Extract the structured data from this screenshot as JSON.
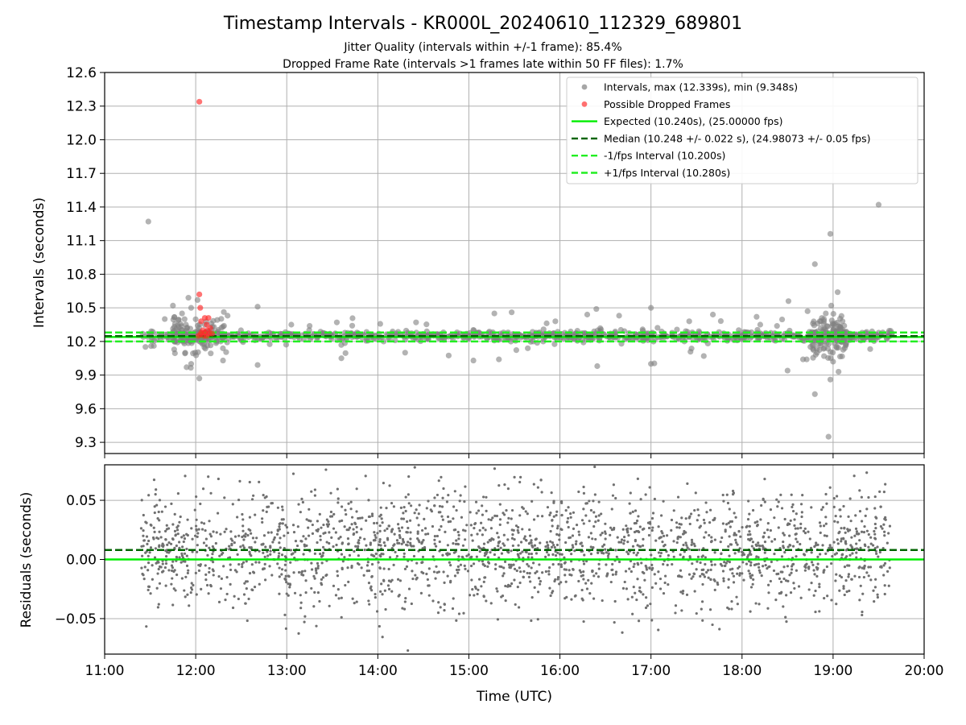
{
  "chart_data": [
    {
      "type": "scatter",
      "title": "Timestamp Intervals - KR000L_20240610_112329_689801",
      "subtitle_lines": [
        "Jitter Quality (intervals within +/-1 frame): 85.4%",
        "Dropped Frame Rate (intervals >1 frames late within 50 FF files): 1.7%"
      ],
      "xlabel": "",
      "ylabel": "Intervals (seconds)",
      "xlim": [
        11.0,
        20.0
      ],
      "ylim": [
        9.2,
        12.6
      ],
      "yticks": [
        9.3,
        9.6,
        9.9,
        10.2,
        10.5,
        10.8,
        11.1,
        11.4,
        11.7,
        12.0,
        12.3,
        12.6
      ],
      "ytick_labels": [
        "9.3",
        "9.6",
        "9.9",
        "10.2",
        "10.5",
        "10.8",
        "11.1",
        "11.4",
        "11.7",
        "12.0",
        "12.3",
        "12.6"
      ],
      "grid": true,
      "legend_position": "top-right",
      "legend": [
        {
          "label": "Intervals, max (12.339s), min (9.348s)",
          "marker": "dot",
          "color": "#808080"
        },
        {
          "label": "Possible Dropped Frames",
          "marker": "dot",
          "color": "#ff3333"
        },
        {
          "label": "Expected (10.240s), (25.00000 fps)",
          "marker": "solid-line",
          "color": "#00ee00"
        },
        {
          "label": "Median (10.248 +/- 0.022 s), (24.98073 +/- 0.05 fps)",
          "marker": "dashed-line",
          "color": "#006400"
        },
        {
          "label": "-1/fps Interval (10.200s)",
          "marker": "dashed-line",
          "color": "#22ee22"
        },
        {
          "label": "+1/fps Interval (10.280s)",
          "marker": "dashed-line",
          "color": "#22ee22"
        }
      ],
      "lines": [
        {
          "name": "expected",
          "y": 10.24,
          "style": "solid",
          "color": "#00ee00"
        },
        {
          "name": "median",
          "y": 10.248,
          "style": "dashed",
          "color": "#006400"
        },
        {
          "name": "minus-one-fps",
          "y": 10.2,
          "style": "dashed",
          "color": "#22ee22"
        },
        {
          "name": "plus-one-fps",
          "y": 10.28,
          "style": "dashed",
          "color": "#22ee22"
        }
      ],
      "outliers": [
        {
          "x": 11.48,
          "y": 11.27
        },
        {
          "x": 19.5,
          "y": 11.42
        },
        {
          "x": 18.97,
          "y": 11.16
        },
        {
          "x": 18.8,
          "y": 10.89
        },
        {
          "x": 18.98,
          "y": 10.52
        },
        {
          "x": 19.05,
          "y": 10.64
        },
        {
          "x": 18.72,
          "y": 10.47
        },
        {
          "x": 18.51,
          "y": 10.56
        },
        {
          "x": 18.92,
          "y": 10.45
        },
        {
          "x": 18.5,
          "y": 9.94
        },
        {
          "x": 18.67,
          "y": 10.04
        },
        {
          "x": 18.71,
          "y": 10.04
        },
        {
          "x": 18.8,
          "y": 9.73
        },
        {
          "x": 18.97,
          "y": 9.86
        },
        {
          "x": 18.95,
          "y": 9.35
        },
        {
          "x": 19.06,
          "y": 9.93
        },
        {
          "x": 19.0,
          "y": 10.02
        },
        {
          "x": 18.9,
          "y": 10.4
        },
        {
          "x": 11.75,
          "y": 10.52
        },
        {
          "x": 11.85,
          "y": 10.45
        },
        {
          "x": 11.92,
          "y": 10.59
        },
        {
          "x": 11.95,
          "y": 10.5
        },
        {
          "x": 12.02,
          "y": 10.57
        },
        {
          "x": 12.04,
          "y": 9.87
        },
        {
          "x": 11.9,
          "y": 9.97
        },
        {
          "x": 11.95,
          "y": 10.0
        },
        {
          "x": 12.17,
          "y": 10.36
        },
        {
          "x": 12.2,
          "y": 10.33
        },
        {
          "x": 12.35,
          "y": 10.43
        },
        {
          "x": 12.3,
          "y": 10.03
        },
        {
          "x": 12.68,
          "y": 10.51
        },
        {
          "x": 12.68,
          "y": 9.99
        },
        {
          "x": 11.66,
          "y": 10.4
        },
        {
          "x": 13.6,
          "y": 10.05
        },
        {
          "x": 13.55,
          "y": 10.37
        },
        {
          "x": 15.05,
          "y": 10.03
        },
        {
          "x": 15.28,
          "y": 10.45
        },
        {
          "x": 15.47,
          "y": 10.46
        },
        {
          "x": 15.33,
          "y": 10.04
        },
        {
          "x": 16.3,
          "y": 10.44
        },
        {
          "x": 16.4,
          "y": 10.49
        },
        {
          "x": 16.41,
          "y": 9.98
        },
        {
          "x": 16.65,
          "y": 10.43
        },
        {
          "x": 17.0,
          "y": 10.5
        },
        {
          "x": 17.0,
          "y": 10.0
        },
        {
          "x": 17.42,
          "y": 10.38
        },
        {
          "x": 17.68,
          "y": 10.44
        },
        {
          "x": 17.58,
          "y": 10.07
        },
        {
          "x": 18.16,
          "y": 10.42
        },
        {
          "x": 18.2,
          "y": 10.35
        },
        {
          "x": 13.05,
          "y": 10.35
        },
        {
          "x": 14.42,
          "y": 10.37
        },
        {
          "x": 14.3,
          "y": 10.1
        },
        {
          "x": 15.95,
          "y": 10.38
        }
      ],
      "dropped_frames": [
        {
          "x": 12.04,
          "y": 12.339
        },
        {
          "x": 12.04,
          "y": 10.62
        },
        {
          "x": 12.05,
          "y": 10.5
        },
        {
          "x": 12.1,
          "y": 10.41
        },
        {
          "x": 12.14,
          "y": 10.41
        },
        {
          "x": 12.06,
          "y": 10.38
        },
        {
          "x": 12.12,
          "y": 10.35
        },
        {
          "x": 12.16,
          "y": 10.32
        },
        {
          "x": 12.08,
          "y": 10.3
        },
        {
          "x": 12.13,
          "y": 10.3
        },
        {
          "x": 12.1,
          "y": 10.28
        },
        {
          "x": 12.06,
          "y": 10.28
        },
        {
          "x": 12.15,
          "y": 10.27
        },
        {
          "x": 12.05,
          "y": 10.26
        },
        {
          "x": 12.18,
          "y": 10.27
        },
        {
          "x": 12.09,
          "y": 10.25
        },
        {
          "x": 12.12,
          "y": 10.25
        },
        {
          "x": 12.03,
          "y": 10.25
        }
      ],
      "series": [
        {
          "name": "Intervals",
          "x_range": [
            11.4,
            19.65
          ],
          "median_y": 10.248,
          "sigma": 0.022
        }
      ]
    },
    {
      "type": "scatter",
      "xlabel": "Time (UTC)",
      "ylabel": "Residuals (seconds)",
      "xlim": [
        11.0,
        20.0
      ],
      "ylim": [
        -0.08,
        0.08
      ],
      "xticks": [
        11,
        12,
        13,
        14,
        15,
        16,
        17,
        18,
        19,
        20
      ],
      "xtick_labels": [
        "11:00",
        "12:00",
        "13:00",
        "14:00",
        "15:00",
        "16:00",
        "17:00",
        "18:00",
        "19:00",
        "20:00"
      ],
      "yticks": [
        -0.05,
        0.0,
        0.05
      ],
      "ytick_labels": [
        "−0.05",
        "0.00",
        "0.05"
      ],
      "grid": true,
      "lines": [
        {
          "name": "expected",
          "y": 0.0,
          "style": "solid",
          "color": "#00ee00"
        },
        {
          "name": "median",
          "y": 0.008,
          "style": "dashed",
          "color": "#006400"
        }
      ],
      "series": [
        {
          "name": "Residuals",
          "x_range": [
            11.4,
            19.65
          ],
          "center_y": 0.008,
          "spread": 0.025,
          "color": "#707070"
        }
      ]
    }
  ]
}
